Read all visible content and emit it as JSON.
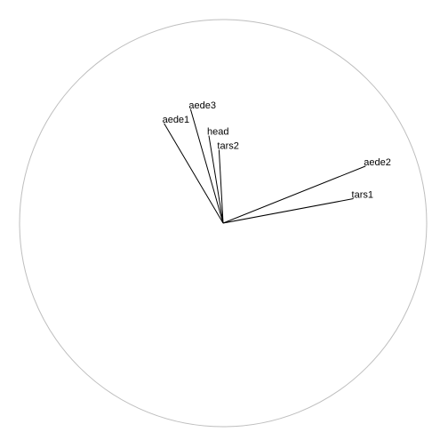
{
  "chart_data": {
    "type": "correlation-circle",
    "title": "",
    "xlabel": "",
    "ylabel": "",
    "xlim": [
      -1,
      1
    ],
    "ylim": [
      -1,
      1
    ],
    "circle_color": "#bebebe",
    "arrow_color": "#000000",
    "grid": false,
    "variables": [
      {
        "name": "aede1",
        "x": -0.29,
        "y": 0.49
      },
      {
        "name": "aede3",
        "x": -0.16,
        "y": 0.56
      },
      {
        "name": "head",
        "x": -0.07,
        "y": 0.43
      },
      {
        "name": "tars2",
        "x": -0.02,
        "y": 0.36
      },
      {
        "name": "aede2",
        "x": 0.7,
        "y": 0.28
      },
      {
        "name": "tars1",
        "x": 0.64,
        "y": 0.12
      }
    ]
  }
}
